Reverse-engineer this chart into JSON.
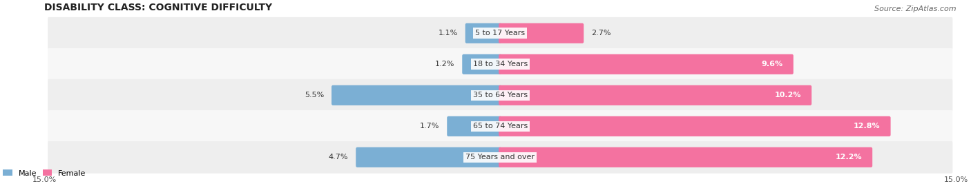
{
  "title": "DISABILITY CLASS: COGNITIVE DIFFICULTY",
  "source": "Source: ZipAtlas.com",
  "categories": [
    "5 to 17 Years",
    "18 to 34 Years",
    "35 to 64 Years",
    "65 to 74 Years",
    "75 Years and over"
  ],
  "male_values": [
    1.1,
    1.2,
    5.5,
    1.7,
    4.7
  ],
  "female_values": [
    2.7,
    9.6,
    10.2,
    12.8,
    12.2
  ],
  "male_color": "#7bafd4",
  "female_color": "#f472a0",
  "row_colors": [
    "#eeeeee",
    "#f7f7f7"
  ],
  "x_max": 15.0,
  "bar_height": 0.55,
  "title_fontsize": 10,
  "label_fontsize": 8,
  "tick_fontsize": 8,
  "source_fontsize": 8
}
